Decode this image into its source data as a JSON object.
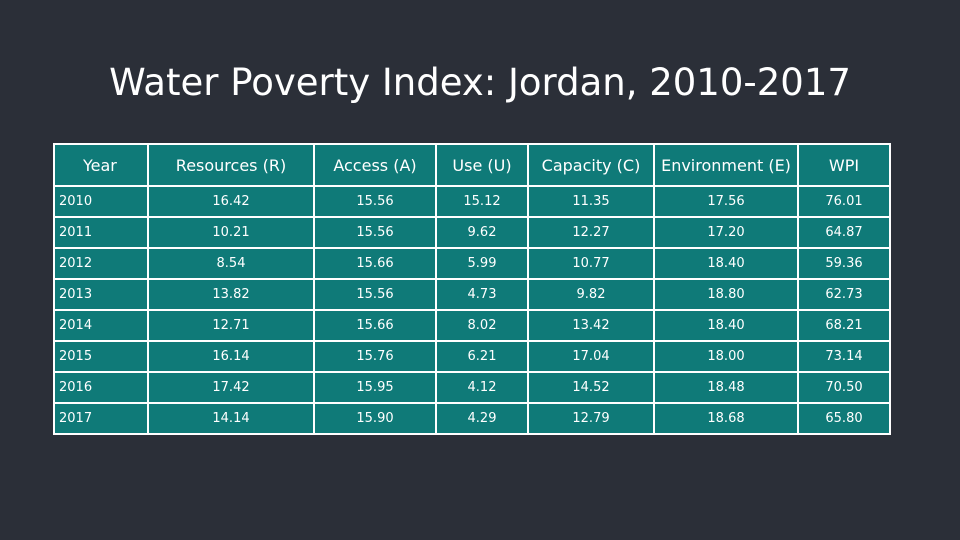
{
  "title": "Water Poverty Index: Jordan, 2010-2017",
  "table": {
    "headers": [
      "Year",
      "Resources (R)",
      "Access (A)",
      "Use (U)",
      "Capacity (C)",
      "Environment (E)",
      "WPI"
    ],
    "rows": [
      [
        "2010",
        "16.42",
        "15.56",
        "15.12",
        "11.35",
        "17.56",
        "76.01"
      ],
      [
        "2011",
        "10.21",
        "15.56",
        "9.62",
        "12.27",
        "17.20",
        "64.87"
      ],
      [
        "2012",
        "8.54",
        "15.66",
        "5.99",
        "10.77",
        "18.40",
        "59.36"
      ],
      [
        "2013",
        "13.82",
        "15.56",
        "4.73",
        "9.82",
        "18.80",
        "62.73"
      ],
      [
        "2014",
        "12.71",
        "15.66",
        "8.02",
        "13.42",
        "18.40",
        "68.21"
      ],
      [
        "2015",
        "16.14",
        "15.76",
        "6.21",
        "17.04",
        "18.00",
        "73.14"
      ],
      [
        "2016",
        "17.42",
        "15.95",
        "4.12",
        "14.52",
        "18.48",
        "70.50"
      ],
      [
        "2017",
        "14.14",
        "15.90",
        "4.29",
        "12.79",
        "18.68",
        "65.80"
      ]
    ]
  },
  "colors": {
    "background": "#2b2f38",
    "table_fill": "#0f7a78",
    "border": "#ffffff",
    "text": "#ffffff"
  }
}
